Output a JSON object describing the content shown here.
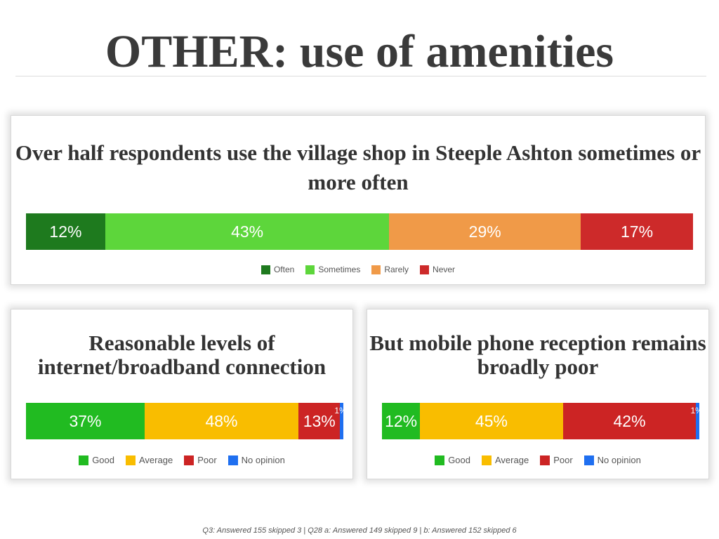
{
  "slide": {
    "title": "OTHER: use of amenities",
    "footnote": "Q3: Answered 155 skipped 3 | Q28 a: Answered 149 skipped 9 | b: Answered 152 skipped 6"
  },
  "chart_data": [
    {
      "type": "bar",
      "orientation": "horizontal-stacked",
      "title": "Over half respondents use the village shop in Steeple Ashton sometimes or more often",
      "series": [
        {
          "name": "Often",
          "value": 12,
          "label": "12%",
          "color": "#1e7a1e"
        },
        {
          "name": "Sometimes",
          "value": 43,
          "label": "43%",
          "color": "#5dd63b"
        },
        {
          "name": "Rarely",
          "value": 29,
          "label": "29%",
          "color": "#f09a48"
        },
        {
          "name": "Never",
          "value": 17,
          "label": "17%",
          "color": "#cd2a2a"
        }
      ],
      "legend": "bottom"
    },
    {
      "type": "bar",
      "orientation": "horizontal-stacked",
      "title": "Reasonable levels of internet/broadband connection",
      "series": [
        {
          "name": "Good",
          "value": 37,
          "label": "37%",
          "color": "#21bb21"
        },
        {
          "name": "Average",
          "value": 48,
          "label": "48%",
          "color": "#f9bd00"
        },
        {
          "name": "Poor",
          "value": 13,
          "label": "13%",
          "color": "#cc2424"
        },
        {
          "name": "No opinion",
          "value": 1,
          "label": "1%",
          "color": "#1f6ff0"
        }
      ],
      "legend": "bottom"
    },
    {
      "type": "bar",
      "orientation": "horizontal-stacked",
      "title": "But mobile phone reception remains broadly poor",
      "series": [
        {
          "name": "Good",
          "value": 12,
          "label": "12%",
          "color": "#21bb21"
        },
        {
          "name": "Average",
          "value": 45,
          "label": "45%",
          "color": "#f9bd00"
        },
        {
          "name": "Poor",
          "value": 42,
          "label": "42%",
          "color": "#cc2424"
        },
        {
          "name": "No opinion",
          "value": 1,
          "label": "1%",
          "color": "#1f6ff0"
        }
      ],
      "legend": "bottom"
    }
  ]
}
